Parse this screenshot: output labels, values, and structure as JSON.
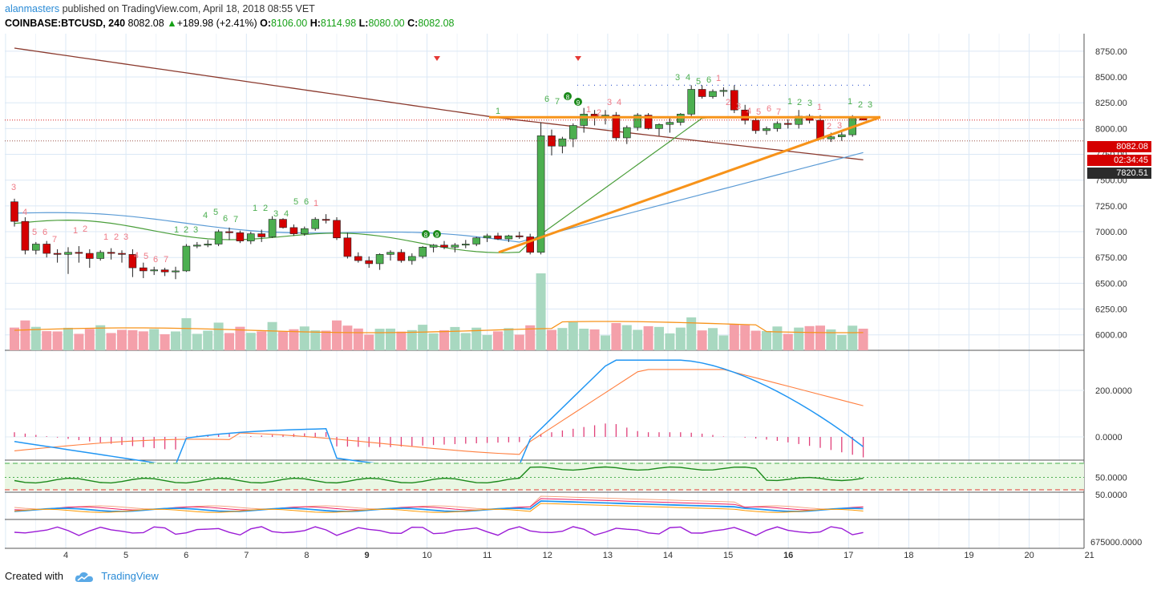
{
  "header": {
    "author": "alanmasters",
    "published_text": " published on TradingView.com, April 18, 2018 08:55 VET",
    "symbol": "COINBASE:BTCUSD, 240",
    "last": "8082.08",
    "change_arrow": "▲",
    "change": "+189.98 (+2.41%)",
    "o_label": "O:",
    "o_value": "8106.00",
    "h_label": "H:",
    "h_value": "8114.98",
    "l_label": "L:",
    "l_value": "8080.00",
    "c_label": "C:",
    "c_value": "8082.08"
  },
  "footer": {
    "created_with": "Created with",
    "brand": "TradingView"
  },
  "price_tags": {
    "last_price": "8082.08",
    "countdown": "02:34:45",
    "ma_value": "7820.51"
  },
  "colors": {
    "up": "#4caf50",
    "down": "#d50000",
    "ma_brown": "#8b3a2e",
    "ma_blue": "#5b9bd5",
    "ma_green": "#4a9e3a",
    "trendline": "#f7931a",
    "vol_up": "#a8d8c0",
    "vol_down": "#f4a0aa",
    "macd": "#2196f3",
    "signal": "#ff7f3f",
    "hist": "#e0407a",
    "rsi": "#1b8a1b",
    "stoch": "#9b1bd6"
  },
  "chart_data": {
    "type": "candlestick",
    "price_axis_ticks": [
      "8750.00",
      "8500.00",
      "8250.00",
      "8000.00",
      "7750.00",
      "7500.00",
      "7250.00",
      "7000.00",
      "6750.00",
      "6500.00",
      "6250.00",
      "6000.00"
    ],
    "macd_axis_ticks": [
      "200.0000",
      "0.0000"
    ],
    "rsi_axis_ticks": [
      "50.0000"
    ],
    "pane4_axis_ticks": [
      "50.0000"
    ],
    "pane5_axis_ticks": [
      "675000.0000"
    ],
    "x_axis_labels": [
      "4",
      "5",
      "6",
      "7",
      "8",
      "9",
      "10",
      "11",
      "12",
      "13",
      "14",
      "15",
      "16",
      "17",
      "18",
      "19",
      "20",
      "21"
    ],
    "ylim": [
      5850,
      8900
    ],
    "candles": [
      [
        7290,
        7320,
        7050,
        7100
      ],
      [
        7100,
        7140,
        6780,
        6820
      ],
      [
        6820,
        6900,
        6780,
        6880
      ],
      [
        6880,
        6910,
        6750,
        6790
      ],
      [
        6790,
        6830,
        6700,
        6780
      ],
      [
        6780,
        6850,
        6590,
        6800
      ],
      [
        6800,
        6860,
        6700,
        6790
      ],
      [
        6790,
        6830,
        6650,
        6740
      ],
      [
        6740,
        6820,
        6720,
        6800
      ],
      [
        6800,
        6840,
        6730,
        6790
      ],
      [
        6790,
        6820,
        6700,
        6780
      ],
      [
        6780,
        6830,
        6560,
        6650
      ],
      [
        6650,
        6700,
        6550,
        6620
      ],
      [
        6620,
        6660,
        6580,
        6630
      ],
      [
        6630,
        6650,
        6570,
        6610
      ],
      [
        6610,
        6660,
        6540,
        6620
      ],
      [
        6620,
        6880,
        6610,
        6860
      ],
      [
        6860,
        6900,
        6840,
        6870
      ],
      [
        6870,
        6920,
        6850,
        6880
      ],
      [
        6880,
        7020,
        6860,
        7000
      ],
      [
        7000,
        7040,
        6920,
        6990
      ],
      [
        6990,
        7010,
        6890,
        6910
      ],
      [
        6910,
        7000,
        6880,
        6980
      ],
      [
        6980,
        7020,
        6900,
        6950
      ],
      [
        6950,
        7150,
        6940,
        7120
      ],
      [
        7120,
        7130,
        7030,
        7040
      ],
      [
        7040,
        7070,
        6960,
        6980
      ],
      [
        6980,
        7050,
        6960,
        7030
      ],
      [
        7030,
        7140,
        7010,
        7120
      ],
      [
        7120,
        7170,
        7080,
        7110
      ],
      [
        7110,
        7140,
        6920,
        6940
      ],
      [
        6940,
        6990,
        6740,
        6760
      ],
      [
        6760,
        6800,
        6700,
        6720
      ],
      [
        6720,
        6760,
        6650,
        6690
      ],
      [
        6690,
        6790,
        6630,
        6780
      ],
      [
        6780,
        6820,
        6720,
        6800
      ],
      [
        6800,
        6830,
        6700,
        6720
      ],
      [
        6720,
        6790,
        6680,
        6760
      ],
      [
        6760,
        6860,
        6740,
        6850
      ],
      [
        6850,
        6880,
        6800,
        6870
      ],
      [
        6870,
        6910,
        6830,
        6850
      ],
      [
        6850,
        6890,
        6800,
        6870
      ],
      [
        6870,
        6920,
        6840,
        6880
      ],
      [
        6880,
        6950,
        6860,
        6940
      ],
      [
        6940,
        6980,
        6900,
        6960
      ],
      [
        6960,
        6990,
        6920,
        6930
      ],
      [
        6930,
        6970,
        6900,
        6960
      ],
      [
        6960,
        7000,
        6930,
        6950
      ],
      [
        6950,
        6980,
        6780,
        6800
      ],
      [
        6800,
        8060,
        6780,
        7930
      ],
      [
        7930,
        7990,
        7740,
        7830
      ],
      [
        7830,
        7920,
        7760,
        7900
      ],
      [
        7900,
        8050,
        7820,
        8030
      ],
      [
        8030,
        8200,
        7960,
        8140
      ],
      [
        8140,
        8180,
        8030,
        8120
      ],
      [
        8120,
        8180,
        8040,
        8130
      ],
      [
        8130,
        8160,
        7880,
        7910
      ],
      [
        7910,
        8030,
        7850,
        8010
      ],
      [
        8010,
        8150,
        7980,
        8130
      ],
      [
        8130,
        8150,
        7990,
        8000
      ],
      [
        8000,
        8050,
        7930,
        8040
      ],
      [
        8040,
        8100,
        7960,
        8060
      ],
      [
        8060,
        8150,
        8030,
        8140
      ],
      [
        8140,
        8420,
        8120,
        8380
      ],
      [
        8380,
        8420,
        8290,
        8310
      ],
      [
        8310,
        8380,
        8290,
        8360
      ],
      [
        8360,
        8400,
        8310,
        8370
      ],
      [
        8370,
        8420,
        8150,
        8180
      ],
      [
        8180,
        8230,
        8040,
        8080
      ],
      [
        8080,
        8120,
        7950,
        7980
      ],
      [
        7980,
        8020,
        7940,
        8000
      ],
      [
        8000,
        8070,
        7970,
        8050
      ],
      [
        8050,
        8090,
        8000,
        8040
      ],
      [
        8040,
        8180,
        8000,
        8120
      ],
      [
        8120,
        8140,
        8050,
        8080
      ],
      [
        8080,
        8130,
        7890,
        7900
      ],
      [
        7900,
        7960,
        7870,
        7920
      ],
      [
        7920,
        7980,
        7880,
        7940
      ],
      [
        7940,
        8130,
        7920,
        8100
      ],
      [
        8100,
        8120,
        8080,
        8082
      ]
    ]
  }
}
